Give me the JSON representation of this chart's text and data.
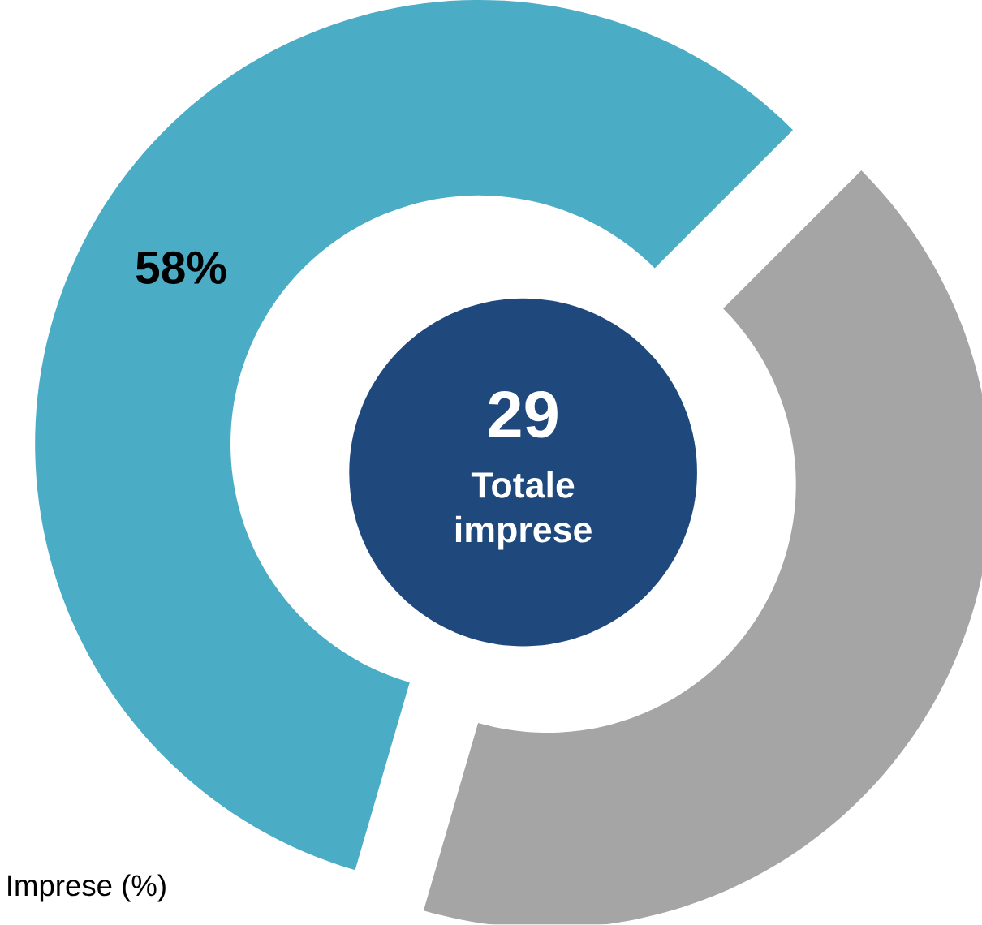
{
  "chart_data": {
    "type": "donut",
    "categories": [
      null,
      null
    ],
    "values": [
      58,
      42
    ],
    "colors": [
      "#4bacc6",
      "#a5a5a5"
    ],
    "value_labels": [
      "58%",
      null
    ],
    "annotations": [
      "29",
      "Totale imprese",
      "Imprese (%)"
    ]
  }
}
